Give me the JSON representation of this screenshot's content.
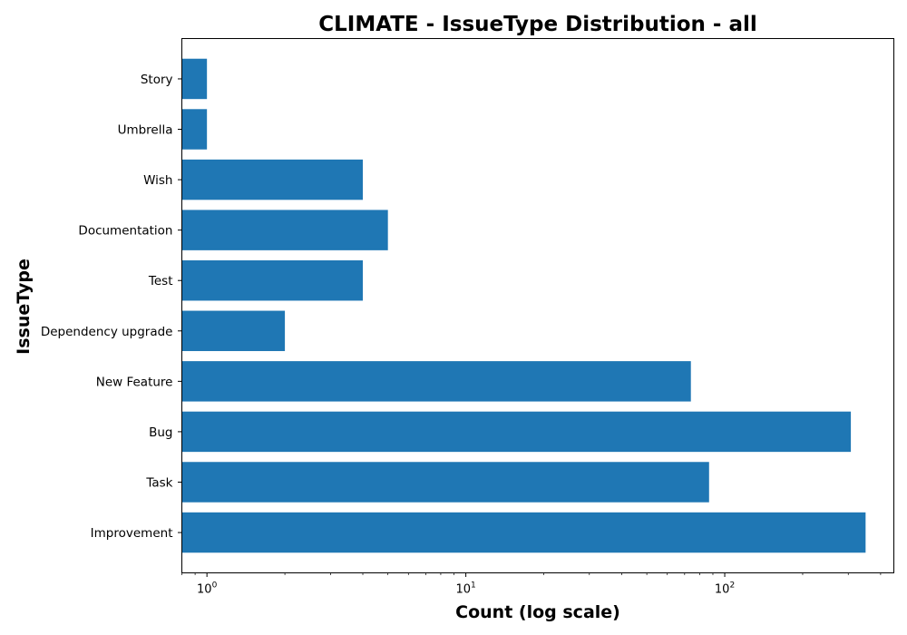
{
  "chart_data": {
    "type": "bar",
    "orientation": "horizontal",
    "title": "CLIMATE - IssueType Distribution - all",
    "xlabel": "Count (log scale)",
    "ylabel": "IssueType",
    "xscale": "log",
    "xlim": [
      0.8,
      450
    ],
    "xticks": [
      {
        "base": "10",
        "exp": "0",
        "value": 1
      },
      {
        "base": "10",
        "exp": "1",
        "value": 10
      },
      {
        "base": "10",
        "exp": "2",
        "value": 100
      }
    ],
    "categories": [
      "Improvement",
      "Task",
      "Bug",
      "New Feature",
      "Dependency upgrade",
      "Test",
      "Documentation",
      "Wish",
      "Umbrella",
      "Story"
    ],
    "values": [
      350,
      87,
      307,
      74,
      2,
      4,
      5,
      4,
      1,
      1
    ],
    "bar_color": "#1f77b4",
    "grid": false,
    "legend": "none"
  }
}
